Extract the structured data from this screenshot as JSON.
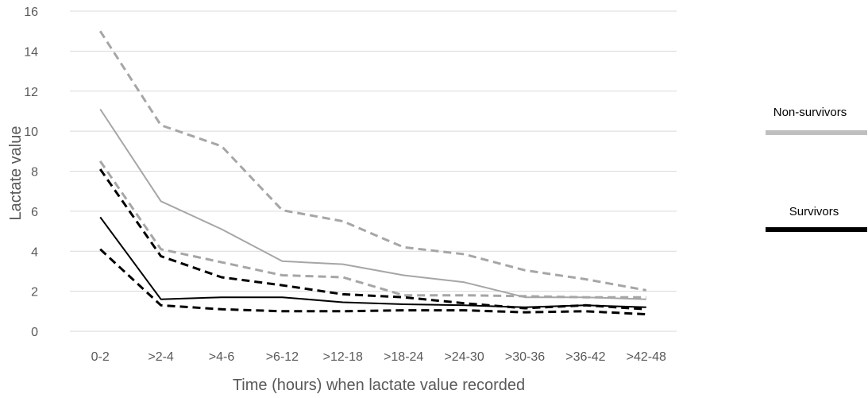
{
  "chart_data": {
    "type": "line",
    "title": "",
    "xlabel": "Time (hours) when lactate value recorded",
    "ylabel": "Lactate value",
    "categories": [
      "0-2",
      ">2-4",
      ">4-6",
      ">6-12",
      ">12-18",
      ">18-24",
      ">24-30",
      ">30-36",
      ">36-42",
      ">42-48"
    ],
    "ylim": [
      0,
      16
    ],
    "yticks": [
      0,
      2,
      4,
      6,
      8,
      10,
      12,
      14,
      16
    ],
    "grid": true,
    "legend": [
      {
        "label": "Non-survivors",
        "color": "#bfbfbf"
      },
      {
        "label": "Survivors",
        "color": "#000000"
      }
    ],
    "series": [
      {
        "group": "Non-survivors",
        "style": "solid",
        "color": "#a6a6a6",
        "values": [
          11.1,
          6.5,
          5.1,
          3.5,
          3.35,
          2.8,
          2.45,
          1.7,
          1.7,
          1.6
        ]
      },
      {
        "group": "Non-survivors",
        "style": "dashed",
        "color": "#a6a6a6",
        "values": [
          15.0,
          10.3,
          9.25,
          6.05,
          5.5,
          4.2,
          3.85,
          3.05,
          2.6,
          2.05
        ]
      },
      {
        "group": "Non-survivors",
        "style": "dashed",
        "color": "#a6a6a6",
        "values": [
          8.5,
          4.1,
          3.45,
          2.8,
          2.7,
          1.8,
          1.8,
          1.75,
          1.7,
          1.7
        ]
      },
      {
        "group": "Survivors",
        "style": "solid",
        "color": "#000000",
        "values": [
          5.7,
          1.6,
          1.7,
          1.7,
          1.45,
          1.35,
          1.3,
          1.2,
          1.3,
          1.2
        ]
      },
      {
        "group": "Survivors",
        "style": "dashed",
        "color": "#000000",
        "values": [
          8.1,
          3.75,
          2.7,
          2.3,
          1.85,
          1.7,
          1.4,
          1.15,
          1.3,
          1.1
        ]
      },
      {
        "group": "Survivors",
        "style": "dashed",
        "color": "#000000",
        "values": [
          4.1,
          1.3,
          1.1,
          1.0,
          1.0,
          1.05,
          1.05,
          0.95,
          1.0,
          0.85
        ]
      }
    ]
  }
}
